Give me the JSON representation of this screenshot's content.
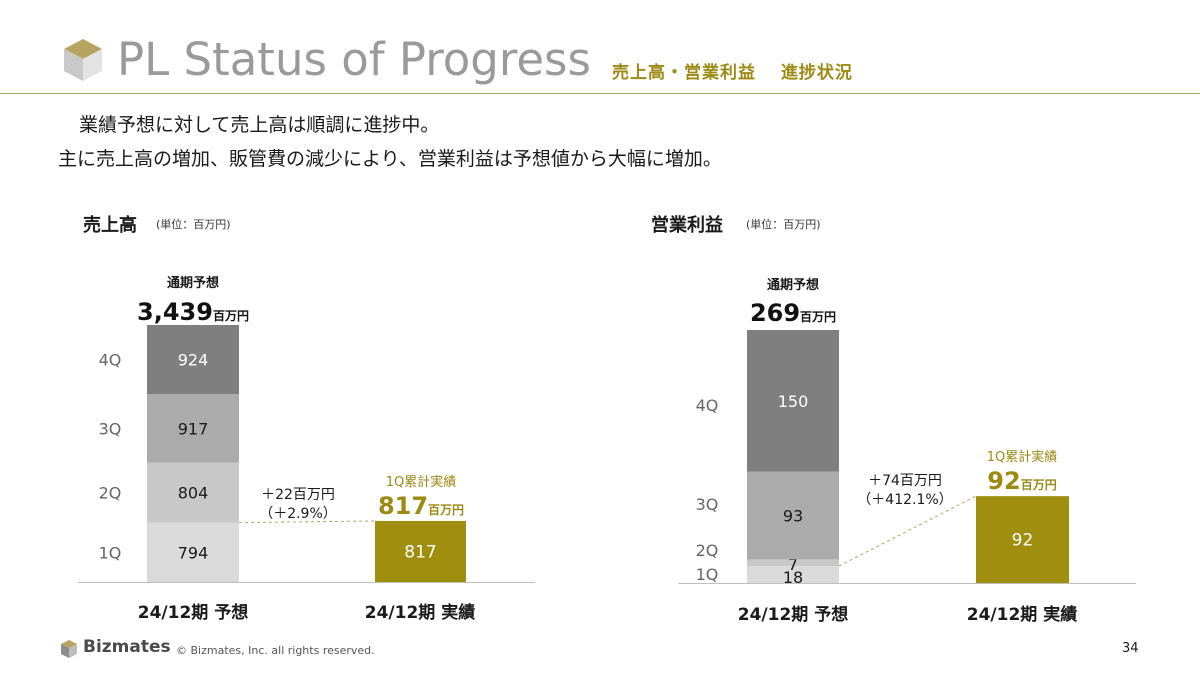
{
  "header": {
    "title": "PL Status of Progress",
    "subtitle": "売上高・営業利益　 進捗状況"
  },
  "description": {
    "line1": "業績予想に対して売上高は順調に進捗中。",
    "line2": "主に売上高の増加、販管費の減少により、営業利益は予想値から大幅に増加。"
  },
  "left_section": {
    "title": "売上高",
    "unit": "(単位：百万円)"
  },
  "right_section": {
    "title": "営業利益",
    "unit": "(単位：百万円)"
  },
  "footer": {
    "brand": "Bizmates",
    "copyright": "© Bizmates, Inc. all rights reserved.",
    "page": "34"
  },
  "colors": {
    "q1": "#dadada",
    "q2": "#c8c8c8",
    "q3": "#ababab",
    "q4": "#7f7f7f",
    "actual": "#a08f0e",
    "gold_text": "#9c8a14",
    "axis": "#bfbfbf",
    "dashed": "#b7a460"
  },
  "chart_data": [
    {
      "type": "bar",
      "stacked": true,
      "categories": [
        "24/12期 予想",
        "24/12期 実績"
      ],
      "series": [
        {
          "name": "1Q",
          "values": [
            794,
            817
          ]
        },
        {
          "name": "2Q",
          "values": [
            804,
            null
          ]
        },
        {
          "name": "3Q",
          "values": [
            917,
            null
          ]
        },
        {
          "name": "4Q",
          "values": [
            924,
            null
          ]
        }
      ],
      "forecast_total": {
        "label": "通期予想",
        "value": "3,439",
        "unit": "百万円"
      },
      "actual_total": {
        "label": "1Q累計実績",
        "value": "817",
        "unit": "百万円"
      },
      "diff": {
        "line1": "＋22百万円",
        "line2": "（＋2.9%）"
      },
      "ylim": [
        0,
        3500
      ]
    },
    {
      "type": "bar",
      "stacked": true,
      "categories": [
        "24/12期 予想",
        "24/12期 実績"
      ],
      "series": [
        {
          "name": "1Q",
          "values": [
            18,
            92
          ]
        },
        {
          "name": "2Q",
          "values": [
            7,
            null
          ]
        },
        {
          "name": "3Q",
          "values": [
            93,
            null
          ]
        },
        {
          "name": "4Q",
          "values": [
            150,
            null
          ]
        }
      ],
      "forecast_total": {
        "label": "通期予想",
        "value": "269",
        "unit": "百万円"
      },
      "actual_total": {
        "label": "1Q累計実績",
        "value": "92",
        "unit": "百万円"
      },
      "diff": {
        "line1": "＋74百万円",
        "line2": "（＋412.1%）"
      },
      "ylim": [
        0,
        270
      ]
    }
  ]
}
